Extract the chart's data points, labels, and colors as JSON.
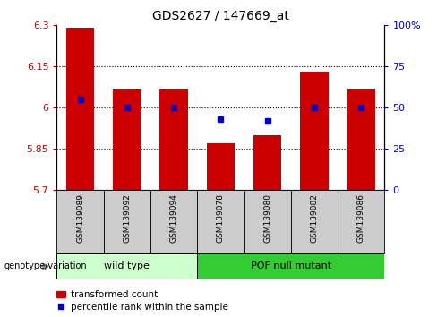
{
  "title": "GDS2627 / 147669_at",
  "samples": [
    "GSM139089",
    "GSM139092",
    "GSM139094",
    "GSM139078",
    "GSM139080",
    "GSM139082",
    "GSM139086"
  ],
  "bar_values": [
    6.29,
    6.07,
    6.07,
    5.87,
    5.9,
    6.13,
    6.07
  ],
  "bar_base": 5.7,
  "percentile_values": [
    55,
    50,
    50,
    43,
    42,
    50,
    50
  ],
  "ylim_left": [
    5.7,
    6.3
  ],
  "ylim_right": [
    0,
    100
  ],
  "yticks_left": [
    5.7,
    5.85,
    6.0,
    6.15,
    6.3
  ],
  "ytick_labels_left": [
    "5.7",
    "5.85",
    "6",
    "6.15",
    "6.3"
  ],
  "yticks_right": [
    0,
    25,
    50,
    75,
    100
  ],
  "ytick_labels_right": [
    "0",
    "25",
    "50",
    "75",
    "100%"
  ],
  "bar_color": "#cc0000",
  "dot_color": "#0000cc",
  "group1_label": "wild type",
  "group2_label": "POF null mutant",
  "group1_indices": [
    0,
    1,
    2
  ],
  "group2_indices": [
    3,
    4,
    5,
    6
  ],
  "group1_color": "#ccffcc",
  "group2_color": "#33cc33",
  "group_bg_color": "#cccccc",
  "genotype_label": "genotype/variation",
  "legend_bar_label": "transformed count",
  "legend_dot_label": "percentile rank within the sample",
  "hline_color": "#000000",
  "bar_width": 0.6,
  "fig_width": 4.88,
  "fig_height": 3.54,
  "dpi": 100
}
